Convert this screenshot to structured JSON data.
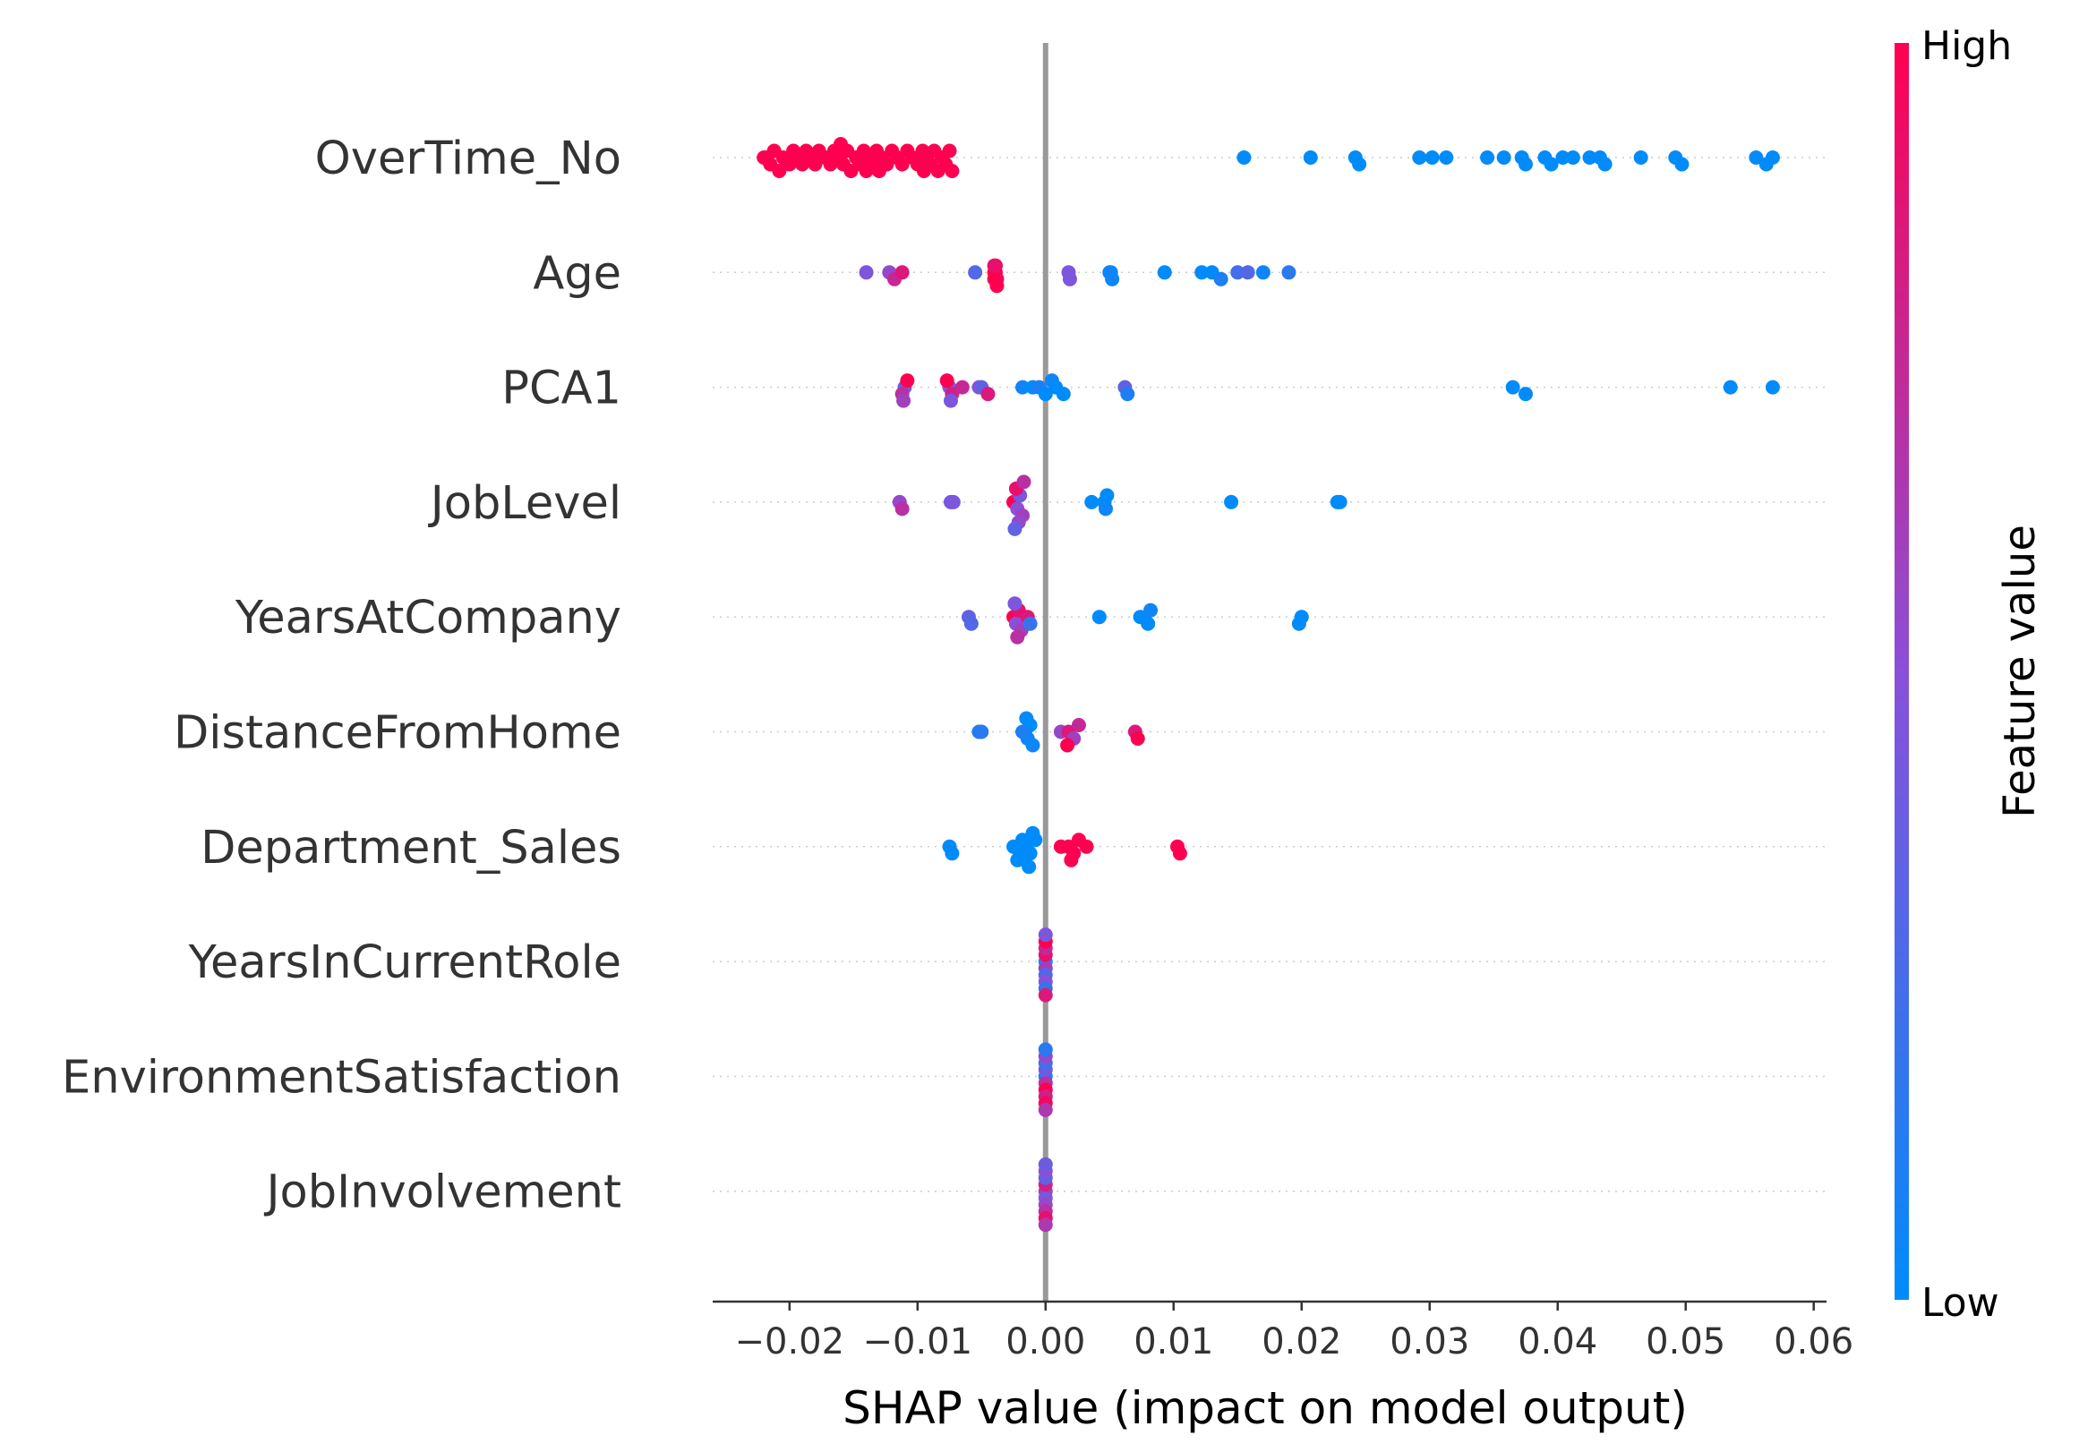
{
  "chart_data": {
    "type": "scatter",
    "subtype": "shap-beeswarm",
    "xlabel": "SHAP value (impact on model output)",
    "xlim": [
      -0.026,
      0.061
    ],
    "xticks": [
      -0.02,
      -0.01,
      0.0,
      0.01,
      0.02,
      0.03,
      0.04,
      0.05,
      0.06
    ],
    "xtick_labels": [
      "−0.02",
      "−0.01",
      "0.00",
      "0.01",
      "0.02",
      "0.03",
      "0.04",
      "0.05",
      "0.06"
    ],
    "zero_line": true,
    "row_gridlines": "dotted",
    "colorbar": {
      "title": "Feature value",
      "high_label": "High",
      "low_label": "Low",
      "high_color": "#ff0051",
      "low_color": "#008bfb"
    },
    "features": [
      {
        "name": "OverTime_No",
        "points": [
          {
            "x": -0.022,
            "v": 1
          },
          {
            "x": -0.0218,
            "v": 1
          },
          {
            "x": -0.0215,
            "v": 1
          },
          {
            "x": -0.0212,
            "v": 1
          },
          {
            "x": -0.0208,
            "v": 1
          },
          {
            "x": -0.0205,
            "v": 1
          },
          {
            "x": -0.02,
            "v": 1
          },
          {
            "x": -0.0197,
            "v": 1
          },
          {
            "x": -0.0193,
            "v": 1
          },
          {
            "x": -0.019,
            "v": 1
          },
          {
            "x": -0.0187,
            "v": 1
          },
          {
            "x": -0.0183,
            "v": 1
          },
          {
            "x": -0.018,
            "v": 1
          },
          {
            "x": -0.0177,
            "v": 1
          },
          {
            "x": -0.0172,
            "v": 1
          },
          {
            "x": -0.0168,
            "v": 1
          },
          {
            "x": -0.0165,
            "v": 1
          },
          {
            "x": -0.0162,
            "v": 1
          },
          {
            "x": -0.0158,
            "v": 1
          },
          {
            "x": -0.0155,
            "v": 1
          },
          {
            "x": -0.0152,
            "v": 1
          },
          {
            "x": -0.0148,
            "v": 1
          },
          {
            "x": -0.0145,
            "v": 1
          },
          {
            "x": -0.0142,
            "v": 1
          },
          {
            "x": -0.0138,
            "v": 1
          },
          {
            "x": -0.0135,
            "v": 1
          },
          {
            "x": -0.0132,
            "v": 1
          },
          {
            "x": -0.0128,
            "v": 1
          },
          {
            "x": -0.0124,
            "v": 1
          },
          {
            "x": -0.012,
            "v": 1
          },
          {
            "x": -0.0116,
            "v": 1
          },
          {
            "x": -0.0112,
            "v": 1
          },
          {
            "x": -0.0108,
            "v": 1
          },
          {
            "x": -0.0104,
            "v": 1
          },
          {
            "x": -0.01,
            "v": 1
          },
          {
            "x": -0.0096,
            "v": 1
          },
          {
            "x": -0.0093,
            "v": 1
          },
          {
            "x": -0.009,
            "v": 1
          },
          {
            "x": -0.0087,
            "v": 1
          },
          {
            "x": -0.0084,
            "v": 1
          },
          {
            "x": -0.0081,
            "v": 1
          },
          {
            "x": -0.0078,
            "v": 1
          },
          {
            "x": -0.0075,
            "v": 1
          },
          {
            "x": -0.0073,
            "v": 1
          },
          {
            "x": -0.016,
            "v": 1
          },
          {
            "x": -0.014,
            "v": 1
          },
          {
            "x": -0.0095,
            "v": 1
          },
          {
            "x": -0.013,
            "v": 1
          },
          {
            "x": 0.0155,
            "v": 0
          },
          {
            "x": 0.0207,
            "v": 0
          },
          {
            "x": 0.0242,
            "v": 0
          },
          {
            "x": 0.0245,
            "v": 0
          },
          {
            "x": 0.0292,
            "v": 0
          },
          {
            "x": 0.0302,
            "v": 0
          },
          {
            "x": 0.0313,
            "v": 0
          },
          {
            "x": 0.0345,
            "v": 0
          },
          {
            "x": 0.0358,
            "v": 0
          },
          {
            "x": 0.0372,
            "v": 0
          },
          {
            "x": 0.0375,
            "v": 0
          },
          {
            "x": 0.039,
            "v": 0
          },
          {
            "x": 0.0395,
            "v": 0
          },
          {
            "x": 0.0404,
            "v": 0
          },
          {
            "x": 0.0412,
            "v": 0
          },
          {
            "x": 0.0425,
            "v": 0
          },
          {
            "x": 0.0433,
            "v": 0
          },
          {
            "x": 0.0437,
            "v": 0
          },
          {
            "x": 0.0465,
            "v": 0
          },
          {
            "x": 0.0492,
            "v": 0
          },
          {
            "x": 0.0497,
            "v": 0
          },
          {
            "x": 0.0555,
            "v": 0
          },
          {
            "x": 0.0563,
            "v": 0
          },
          {
            "x": 0.0568,
            "v": 0
          }
        ]
      },
      {
        "name": "Age",
        "points": [
          {
            "x": -0.014,
            "v": 0.45
          },
          {
            "x": -0.0122,
            "v": 0.55
          },
          {
            "x": -0.0118,
            "v": 0.75
          },
          {
            "x": -0.0112,
            "v": 0.85
          },
          {
            "x": -0.0055,
            "v": 0.3
          },
          {
            "x": -0.004,
            "v": 1
          },
          {
            "x": -0.0039,
            "v": 1
          },
          {
            "x": -0.0038,
            "v": 0.95
          },
          {
            "x": -0.004,
            "v": 1
          },
          {
            "x": -0.0039,
            "v": 1
          },
          {
            "x": -0.0038,
            "v": 1
          },
          {
            "x": -0.004,
            "v": 0.9
          },
          {
            "x": 0.0018,
            "v": 0.45
          },
          {
            "x": 0.0019,
            "v": 0.45
          },
          {
            "x": 0.005,
            "v": 0.05
          },
          {
            "x": 0.0051,
            "v": 0.05
          },
          {
            "x": 0.0052,
            "v": 0.05
          },
          {
            "x": 0.0093,
            "v": 0
          },
          {
            "x": 0.0122,
            "v": 0
          },
          {
            "x": 0.013,
            "v": 0
          },
          {
            "x": 0.0137,
            "v": 0.1
          },
          {
            "x": 0.015,
            "v": 0.25
          },
          {
            "x": 0.0158,
            "v": 0.3
          },
          {
            "x": 0.017,
            "v": 0.05
          },
          {
            "x": 0.019,
            "v": 0.15
          }
        ]
      },
      {
        "name": "PCA1",
        "points": [
          {
            "x": -0.011,
            "v": 0.4
          },
          {
            "x": -0.0112,
            "v": 0.7
          },
          {
            "x": -0.0108,
            "v": 1
          },
          {
            "x": -0.0111,
            "v": 0.6
          },
          {
            "x": -0.0075,
            "v": 0.5
          },
          {
            "x": -0.0073,
            "v": 0.8
          },
          {
            "x": -0.0077,
            "v": 1
          },
          {
            "x": -0.0074,
            "v": 0.45
          },
          {
            "x": -0.0065,
            "v": 0.75
          },
          {
            "x": -0.0052,
            "v": 0.5
          },
          {
            "x": -0.005,
            "v": 0.35
          },
          {
            "x": -0.0045,
            "v": 0.85
          },
          {
            "x": -0.0018,
            "v": 0.05
          },
          {
            "x": -0.001,
            "v": 0
          },
          {
            "x": -0.0005,
            "v": 0.1
          },
          {
            "x": 0.0,
            "v": 0
          },
          {
            "x": 0.0005,
            "v": 0.05
          },
          {
            "x": 0.0008,
            "v": 0
          },
          {
            "x": 0.0014,
            "v": 0
          },
          {
            "x": 0.0062,
            "v": 0.35
          },
          {
            "x": 0.0064,
            "v": 0.1
          },
          {
            "x": 0.0365,
            "v": 0
          },
          {
            "x": 0.0375,
            "v": 0
          },
          {
            "x": 0.0535,
            "v": 0
          },
          {
            "x": 0.0568,
            "v": 0
          }
        ]
      },
      {
        "name": "JobLevel",
        "points": [
          {
            "x": -0.0114,
            "v": 0.55
          },
          {
            "x": -0.0112,
            "v": 0.7
          },
          {
            "x": -0.0074,
            "v": 0.4
          },
          {
            "x": -0.0072,
            "v": 0.45
          },
          {
            "x": -0.0025,
            "v": 1
          },
          {
            "x": -0.0022,
            "v": 0.5
          },
          {
            "x": -0.002,
            "v": 0.45
          },
          {
            "x": -0.0018,
            "v": 0.6
          },
          {
            "x": -0.0023,
            "v": 0.9
          },
          {
            "x": -0.0021,
            "v": 0.55
          },
          {
            "x": -0.0017,
            "v": 0.7
          },
          {
            "x": -0.0024,
            "v": 0.35
          },
          {
            "x": 0.0036,
            "v": 0
          },
          {
            "x": 0.0046,
            "v": 0
          },
          {
            "x": 0.0047,
            "v": 0.05
          },
          {
            "x": 0.0048,
            "v": 0
          },
          {
            "x": 0.0145,
            "v": 0
          },
          {
            "x": 0.0228,
            "v": 0
          },
          {
            "x": 0.023,
            "v": 0
          }
        ]
      },
      {
        "name": "YearsAtCompany",
        "points": [
          {
            "x": -0.006,
            "v": 0.35
          },
          {
            "x": -0.0058,
            "v": 0.3
          },
          {
            "x": -0.0025,
            "v": 1
          },
          {
            "x": -0.0023,
            "v": 0.5
          },
          {
            "x": -0.0021,
            "v": 0.9
          },
          {
            "x": -0.0019,
            "v": 0.6
          },
          {
            "x": -0.0024,
            "v": 0.45
          },
          {
            "x": -0.0014,
            "v": 0.85
          },
          {
            "x": -0.0012,
            "v": 0.2
          },
          {
            "x": -0.0022,
            "v": 0.7
          },
          {
            "x": 0.0042,
            "v": 0
          },
          {
            "x": 0.0074,
            "v": 0
          },
          {
            "x": 0.008,
            "v": 0
          },
          {
            "x": 0.0082,
            "v": 0.05
          },
          {
            "x": 0.02,
            "v": 0
          },
          {
            "x": 0.0198,
            "v": 0
          }
        ]
      },
      {
        "name": "DistanceFromHome",
        "points": [
          {
            "x": -0.0052,
            "v": 0.1
          },
          {
            "x": -0.005,
            "v": 0.15
          },
          {
            "x": -0.0016,
            "v": 0
          },
          {
            "x": -0.0014,
            "v": 0.05
          },
          {
            "x": -0.0012,
            "v": 0
          },
          {
            "x": -0.0018,
            "v": 0.1
          },
          {
            "x": -0.001,
            "v": 0.05
          },
          {
            "x": -0.0015,
            "v": 0
          },
          {
            "x": 0.0012,
            "v": 0.55
          },
          {
            "x": 0.0018,
            "v": 0.85
          },
          {
            "x": 0.0022,
            "v": 0.6
          },
          {
            "x": 0.0026,
            "v": 0.75
          },
          {
            "x": 0.0017,
            "v": 1
          },
          {
            "x": 0.007,
            "v": 0.85
          },
          {
            "x": 0.0072,
            "v": 1
          }
        ]
      },
      {
        "name": "Department_Sales",
        "points": [
          {
            "x": -0.0075,
            "v": 0
          },
          {
            "x": -0.0073,
            "v": 0
          },
          {
            "x": -0.0025,
            "v": 0
          },
          {
            "x": -0.002,
            "v": 0
          },
          {
            "x": -0.0015,
            "v": 0
          },
          {
            "x": -0.0018,
            "v": 0
          },
          {
            "x": -0.0012,
            "v": 0
          },
          {
            "x": -0.0008,
            "v": 0
          },
          {
            "x": -0.0022,
            "v": 0
          },
          {
            "x": -0.0016,
            "v": 0
          },
          {
            "x": -0.001,
            "v": 0
          },
          {
            "x": -0.0013,
            "v": 0
          },
          {
            "x": 0.0012,
            "v": 1
          },
          {
            "x": 0.0018,
            "v": 1
          },
          {
            "x": 0.0022,
            "v": 1
          },
          {
            "x": 0.0026,
            "v": 1
          },
          {
            "x": 0.0032,
            "v": 1
          },
          {
            "x": 0.002,
            "v": 1
          },
          {
            "x": 0.0103,
            "v": 1
          },
          {
            "x": 0.0105,
            "v": 1
          }
        ]
      },
      {
        "name": "YearsInCurrentRole",
        "points": [
          {
            "x": 0.0,
            "v": 0.1
          },
          {
            "x": 0.0,
            "v": 0.6
          },
          {
            "x": 0.0,
            "v": 0.9
          },
          {
            "x": 0.0,
            "v": 0.3
          },
          {
            "x": 0.0,
            "v": 0.75
          },
          {
            "x": 0.0,
            "v": 0.5
          },
          {
            "x": 0.0,
            "v": 1
          },
          {
            "x": 0.0,
            "v": 0.2
          },
          {
            "x": 0.0,
            "v": 0.45
          },
          {
            "x": 0.0,
            "v": 0.85
          }
        ]
      },
      {
        "name": "EnvironmentSatisfaction",
        "points": [
          {
            "x": 0.0,
            "v": 0.05
          },
          {
            "x": 0.0,
            "v": 0.7
          },
          {
            "x": 0.0,
            "v": 0.4
          },
          {
            "x": 0.0,
            "v": 1
          },
          {
            "x": 0.0,
            "v": 0.25
          },
          {
            "x": 0.0,
            "v": 0.8
          },
          {
            "x": 0.0,
            "v": 0.55
          },
          {
            "x": 0.0,
            "v": 0.95
          },
          {
            "x": 0.0,
            "v": 0.15
          },
          {
            "x": 0.0,
            "v": 0.65
          }
        ]
      },
      {
        "name": "JobInvolvement",
        "points": [
          {
            "x": 0.0,
            "v": 0.6
          },
          {
            "x": 0.0,
            "v": 0.45
          },
          {
            "x": 0.0,
            "v": 0.8
          },
          {
            "x": 0.0,
            "v": 0.55
          },
          {
            "x": 0.0,
            "v": 0.35
          },
          {
            "x": 0.0,
            "v": 0.7
          },
          {
            "x": 0.0,
            "v": 0.5
          },
          {
            "x": 0.0,
            "v": 0.9
          },
          {
            "x": 0.0,
            "v": 0.4
          },
          {
            "x": 0.0,
            "v": 0.65
          }
        ]
      }
    ]
  }
}
